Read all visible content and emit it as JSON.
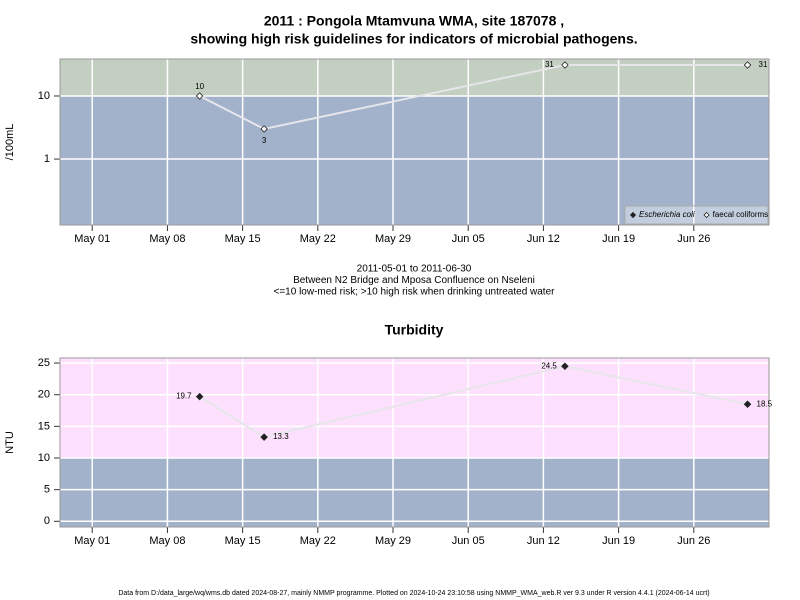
{
  "chart_data": [
    {
      "type": "line",
      "title": "2011 : Pongola Mtamvuna WMA, site 187078 ,",
      "subtitle": "showing high risk guidelines for indicators of microbial pathogens.",
      "y_label": "/100mL",
      "annotations": [
        "2011-05-01 to 2011-06-30",
        "Between N2 Bridge and Mposa Confluence on Nseleni",
        "<=10 low-med risk; >10 high risk when drinking untreated water"
      ],
      "x": [
        "2011-05-11",
        "2011-05-17",
        "2011-06-14",
        "2011-07-01"
      ],
      "series": [
        {
          "name": "Escherichia coli",
          "marker": "filled",
          "color": "#222222",
          "values": [
            null,
            null,
            null,
            null
          ]
        },
        {
          "name": "faecal coliforms",
          "marker": "open",
          "color": "#222222",
          "values": [
            10,
            3,
            31,
            31
          ]
        }
      ],
      "log_y": true,
      "ylim": [
        0.09,
        38.6
      ],
      "yticks": [
        1,
        10
      ],
      "xlim": [
        "2011-04-28",
        "2011-07-03"
      ],
      "xticks": [
        {
          "value": "2011-05-01",
          "label": "May 01"
        },
        {
          "value": "2011-05-08",
          "label": "May 08"
        },
        {
          "value": "2011-05-15",
          "label": "May 15"
        },
        {
          "value": "2011-05-22",
          "label": "May 22"
        },
        {
          "value": "2011-05-29",
          "label": "May 29"
        },
        {
          "value": "2011-06-05",
          "label": "Jun 05"
        },
        {
          "value": "2011-06-12",
          "label": "Jun 12"
        },
        {
          "value": "2011-06-19",
          "label": "Jun 19"
        },
        {
          "value": "2011-06-26",
          "label": "Jun 26"
        }
      ],
      "threshold": 10,
      "above_color": "#c3cfc1",
      "below_color": "#a2b2cb",
      "line_color": "#e6e6ea",
      "grid": true,
      "legend": "lower right"
    },
    {
      "type": "line",
      "title": "Turbidity",
      "y_label": "NTU",
      "x": [
        "2011-05-11",
        "2011-05-17",
        "2011-06-14",
        "2011-07-01"
      ],
      "values": [
        19.7,
        13.3,
        24.5,
        18.5
      ],
      "marker": "filled",
      "color": "#222222",
      "log_y": false,
      "ylim": [
        -0.9,
        25.8
      ],
      "yticks": [
        0,
        5,
        10,
        15,
        20,
        25
      ],
      "xlim": [
        "2011-04-28",
        "2011-07-03"
      ],
      "xticks": [
        {
          "value": "2011-05-01",
          "label": "May 01"
        },
        {
          "value": "2011-05-08",
          "label": "May 08"
        },
        {
          "value": "2011-05-15",
          "label": "May 15"
        },
        {
          "value": "2011-05-22",
          "label": "May 22"
        },
        {
          "value": "2011-05-29",
          "label": "May 29"
        },
        {
          "value": "2011-06-05",
          "label": "Jun 05"
        },
        {
          "value": "2011-06-12",
          "label": "Jun 12"
        },
        {
          "value": "2011-06-19",
          "label": "Jun 19"
        },
        {
          "value": "2011-06-26",
          "label": "Jun 26"
        }
      ],
      "threshold": 10,
      "above_color": "#fde0fd",
      "below_color": "#a2b2cb",
      "line_color": "#e6e6ea",
      "grid": true
    }
  ],
  "footer": "Data from D:/data_large/wq/wms.db dated 2024-08-27, mainly NMMP programme. Plotted on 2024-10-24 23:10:58 using NMMP_WMA_web.R ver 9.3 under R version 4.4.1 (2024-06-14 ucrt)"
}
